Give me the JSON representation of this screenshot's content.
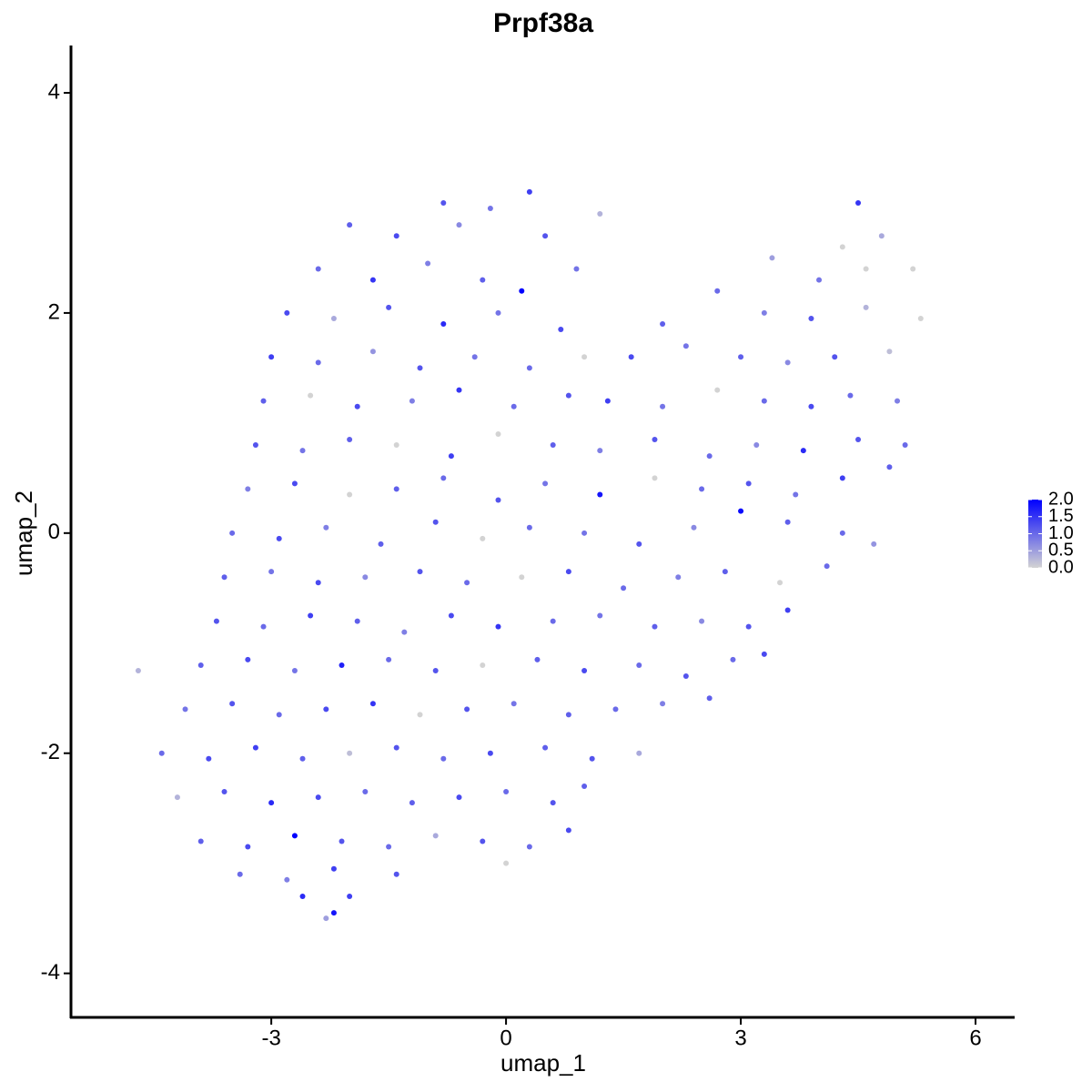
{
  "chart_data": {
    "type": "scatter",
    "title": "Prpf38a",
    "x_label": "umap_1",
    "y_label": "umap_2",
    "xlim": [
      -5.56,
      6.5
    ],
    "ylim": [
      -4.4,
      4.43
    ],
    "xticks": [
      -3,
      0,
      3,
      6
    ],
    "yticks": [
      -4,
      -2,
      0,
      2,
      4
    ],
    "colorbar": {
      "lim": [
        0,
        2
      ],
      "low_color": "#d3d3d3",
      "high_color": "#0000ff",
      "ticks": [
        {
          "value": 2,
          "label": "2.0"
        },
        1.5,
        {
          "value": 1,
          "label": "1.0"
        },
        0.5,
        {
          "value": 0,
          "label": "0.0"
        }
      ]
    },
    "x": [
      -0.8,
      -0.2,
      0.3,
      4.5,
      -2.0,
      -1.4,
      -0.6,
      0.5,
      1.2,
      4.3,
      4.8,
      -2.4,
      -1.7,
      -1.0,
      -0.3,
      0.2,
      0.9,
      3.4,
      4.0,
      4.6,
      5.2,
      -2.8,
      -2.2,
      -1.5,
      -0.8,
      -0.1,
      0.7,
      2.0,
      2.7,
      3.3,
      3.9,
      4.6,
      5.3,
      -3.0,
      -2.4,
      -1.7,
      -1.1,
      -0.4,
      0.3,
      1.0,
      1.6,
      2.3,
      3.0,
      3.6,
      4.2,
      4.9,
      -3.1,
      -2.5,
      -1.9,
      -1.2,
      -0.6,
      0.1,
      0.8,
      1.3,
      2.0,
      2.7,
      3.3,
      3.9,
      4.4,
      5.0,
      -3.2,
      -2.6,
      -2.0,
      -1.4,
      -0.7,
      -0.1,
      0.6,
      1.2,
      1.9,
      2.6,
      3.2,
      3.8,
      4.5,
      5.1,
      -3.3,
      -2.7,
      -2.0,
      -1.4,
      -0.8,
      -0.1,
      0.5,
      1.2,
      1.9,
      2.5,
      3.1,
      3.7,
      4.3,
      4.9,
      -3.5,
      -2.9,
      -2.3,
      -1.6,
      -0.9,
      -0.3,
      0.3,
      1.0,
      1.7,
      2.4,
      3.0,
      3.6,
      4.3,
      4.7,
      -3.6,
      -3.0,
      -2.4,
      -1.8,
      -1.1,
      -0.5,
      0.2,
      0.8,
      1.5,
      2.2,
      2.8,
      3.5,
      4.1,
      -3.7,
      -3.1,
      -2.5,
      -1.9,
      -1.3,
      -0.7,
      -0.1,
      0.6,
      1.2,
      1.9,
      2.5,
      3.1,
      3.6,
      -4.7,
      -3.9,
      -3.3,
      -2.7,
      -2.1,
      -1.5,
      -0.9,
      -0.3,
      0.4,
      1.0,
      1.7,
      2.3,
      2.9,
      3.3,
      -4.1,
      -3.5,
      -2.9,
      -2.3,
      -1.7,
      -1.1,
      -0.5,
      0.1,
      0.8,
      1.4,
      2.0,
      2.6,
      -4.4,
      -3.8,
      -3.2,
      -2.6,
      -2.0,
      -1.4,
      -0.8,
      -0.2,
      0.5,
      1.1,
      1.7,
      -4.2,
      -3.6,
      -3.0,
      -2.4,
      -1.8,
      -1.2,
      -0.6,
      0.0,
      0.6,
      1.0,
      -3.9,
      -3.3,
      -2.7,
      -2.1,
      -1.5,
      -0.9,
      -0.3,
      0.3,
      0.8,
      -3.4,
      -2.8,
      -2.2,
      -1.4,
      0.0,
      -2.6,
      -2.3,
      -2.2,
      -2.0
    ],
    "y": [
      3.0,
      2.95,
      3.1,
      3.0,
      2.8,
      2.7,
      2.8,
      2.7,
      2.9,
      2.6,
      2.7,
      2.4,
      2.3,
      2.45,
      2.3,
      2.2,
      2.4,
      2.5,
      2.3,
      2.4,
      2.4,
      2.0,
      1.95,
      2.05,
      1.9,
      2.0,
      1.85,
      1.9,
      2.2,
      2.0,
      1.95,
      2.05,
      1.95,
      1.6,
      1.55,
      1.65,
      1.5,
      1.6,
      1.5,
      1.6,
      1.6,
      1.7,
      1.6,
      1.55,
      1.6,
      1.65,
      1.2,
      1.25,
      1.15,
      1.2,
      1.3,
      1.15,
      1.25,
      1.2,
      1.15,
      1.3,
      1.2,
      1.15,
      1.25,
      1.2,
      0.8,
      0.75,
      0.85,
      0.8,
      0.7,
      0.9,
      0.8,
      0.75,
      0.85,
      0.7,
      0.8,
      0.75,
      0.85,
      0.8,
      0.4,
      0.45,
      0.35,
      0.4,
      0.5,
      0.3,
      0.45,
      0.35,
      0.5,
      0.4,
      0.45,
      0.35,
      0.5,
      0.6,
      0.0,
      -0.05,
      0.05,
      -0.1,
      0.1,
      -0.05,
      0.05,
      0.0,
      -0.1,
      0.05,
      0.2,
      0.1,
      0.0,
      -0.1,
      -0.4,
      -0.35,
      -0.45,
      -0.4,
      -0.35,
      -0.45,
      -0.4,
      -0.35,
      -0.5,
      -0.4,
      -0.35,
      -0.45,
      -0.3,
      -0.8,
      -0.85,
      -0.75,
      -0.8,
      -0.9,
      -0.75,
      -0.85,
      -0.8,
      -0.75,
      -0.85,
      -0.8,
      -0.85,
      -0.7,
      -1.25,
      -1.2,
      -1.15,
      -1.25,
      -1.2,
      -1.15,
      -1.25,
      -1.2,
      -1.15,
      -1.25,
      -1.2,
      -1.3,
      -1.15,
      -1.1,
      -1.6,
      -1.55,
      -1.65,
      -1.6,
      -1.55,
      -1.65,
      -1.6,
      -1.55,
      -1.65,
      -1.6,
      -1.55,
      -1.5,
      -2.0,
      -2.05,
      -1.95,
      -2.05,
      -2.0,
      -1.95,
      -2.05,
      -2.0,
      -1.95,
      -2.05,
      -2.0,
      -2.4,
      -2.35,
      -2.45,
      -2.4,
      -2.35,
      -2.45,
      -2.4,
      -2.35,
      -2.45,
      -2.3,
      -2.8,
      -2.85,
      -2.75,
      -2.8,
      -2.85,
      -2.75,
      -2.8,
      -2.85,
      -2.7,
      -3.1,
      -3.15,
      -3.05,
      -3.1,
      -3.0,
      -3.3,
      -3.5,
      -3.45,
      -3.3
    ],
    "values": [
      1.2,
      0.9,
      1.4,
      1.5,
      1.1,
      1.3,
      0.7,
      1.2,
      0.3,
      0,
      0.4,
      1.0,
      1.5,
      0.8,
      1.1,
      2.0,
      0.9,
      0.5,
      0.9,
      0,
      0,
      1.3,
      0.4,
      1.2,
      1.6,
      0.9,
      1.3,
      1.1,
      1.0,
      0.8,
      1.2,
      0.3,
      0,
      1.4,
      1.0,
      0.6,
      1.2,
      0.9,
      1.0,
      0,
      1.3,
      0.9,
      1.1,
      0.7,
      1.2,
      0.2,
      1.1,
      0,
      1.3,
      0.8,
      1.5,
      1.0,
      1.2,
      1.4,
      0.9,
      0,
      1.0,
      1.3,
      1.0,
      0.8,
      1.2,
      0.9,
      1.1,
      0,
      1.4,
      0,
      1.1,
      0.8,
      1.2,
      1.0,
      0.7,
      1.6,
      1.2,
      1.0,
      0.8,
      1.3,
      0,
      1.1,
      1.0,
      1.2,
      0.9,
      1.8,
      0,
      1.0,
      1.2,
      0.9,
      1.4,
      1.1,
      1.0,
      1.3,
      0.8,
      1.1,
      1.2,
      0,
      1.0,
      0.9,
      1.2,
      0.7,
      1.9,
      1.1,
      1.0,
      0.6,
      1.1,
      0.9,
      1.3,
      0.7,
      1.2,
      1.0,
      0,
      1.3,
      1.0,
      0.8,
      1.1,
      0,
      1.0,
      1.2,
      1.0,
      1.4,
      1.1,
      0.8,
      1.3,
      1.5,
      1.0,
      0.9,
      1.1,
      0.7,
      1.2,
      1.4,
      0.3,
      1.1,
      1.3,
      0.9,
      1.7,
      1.0,
      1.2,
      0,
      1.1,
      1.3,
      1.0,
      1.2,
      1.0,
      1.3,
      0.9,
      1.2,
      1.0,
      1.3,
      1.5,
      0,
      1.2,
      0.9,
      1.1,
      1.0,
      0.8,
      1.1,
      1.0,
      1.3,
      1.4,
      1.1,
      0.2,
      1.2,
      1.0,
      1.3,
      1.1,
      1.2,
      0.4,
      0.3,
      1.2,
      1.6,
      1.3,
      1.0,
      1.1,
      1.3,
      1.0,
      1.2,
      1.1,
      1.1,
      1.3,
      2.0,
      1.2,
      1.0,
      0.4,
      1.2,
      1.0,
      1.3,
      1.0,
      0.8,
      1.4,
      1.2,
      0,
      1.6,
      0.5,
      1.8,
      1.4
    ]
  }
}
